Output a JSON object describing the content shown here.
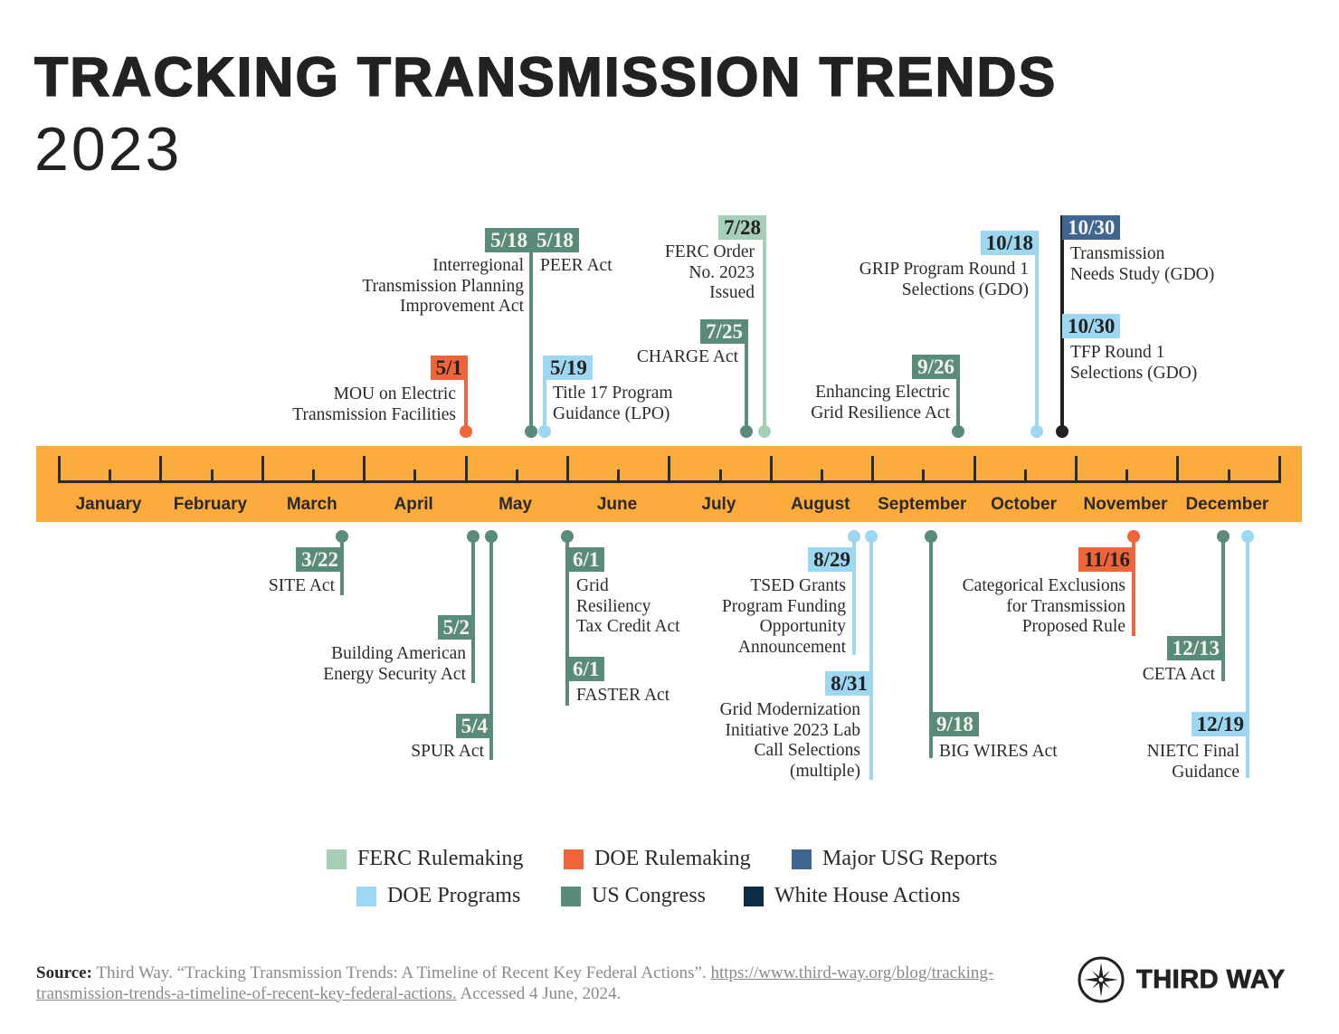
{
  "title": "TRACKING TRANSMISSION TRENDS",
  "year": "2023",
  "months": [
    "January",
    "February",
    "March",
    "April",
    "May",
    "June",
    "July",
    "August",
    "September",
    "October",
    "November",
    "December"
  ],
  "categories": {
    "ferc": {
      "label": "FERC Rulemaking",
      "color": "#a6cfb8"
    },
    "doe-rule": {
      "label": "DOE Rulemaking",
      "color": "#f0643a"
    },
    "usg": {
      "label": "Major USG Reports",
      "color": "#3e6690"
    },
    "doe-prog": {
      "label": "DOE Programs",
      "color": "#9dd7f2"
    },
    "congress": {
      "label": "US Congress",
      "color": "#5a8a78"
    },
    "whitehouse": {
      "label": "White House Actions",
      "color": "#0c2c44"
    }
  },
  "legend_order": [
    "ferc",
    "doe-rule",
    "usg",
    "doe-prog",
    "congress",
    "whitehouse"
  ],
  "timeline_color": "#fbab3b",
  "events": [
    {
      "date": "5/1",
      "category": "doe-rule",
      "text": [
        "MOU on Electric",
        "Transmission Facilities"
      ]
    },
    {
      "date": "5/18",
      "category": "congress",
      "text": [
        "Interregional",
        "Transmission Planning",
        "Improvement Act"
      ]
    },
    {
      "date": "5/18",
      "category": "congress",
      "text": [
        "PEER Act"
      ]
    },
    {
      "date": "5/19",
      "category": "doe-prog",
      "text": [
        "Title 17 Program",
        "Guidance (LPO)"
      ]
    },
    {
      "date": "7/25",
      "category": "congress",
      "text": [
        "CHARGE Act"
      ]
    },
    {
      "date": "7/28",
      "category": "ferc",
      "text": [
        "FERC Order",
        "No. 2023",
        "Issued"
      ]
    },
    {
      "date": "9/26",
      "category": "congress",
      "text": [
        "Enhancing Electric",
        "Grid Resilience Act"
      ]
    },
    {
      "date": "10/18",
      "category": "doe-prog",
      "text": [
        "GRIP Program Round 1",
        "Selections (GDO)"
      ]
    },
    {
      "date": "10/30",
      "category": "usg",
      "text": [
        "Transmission",
        "Needs Study (GDO)"
      ]
    },
    {
      "date": "10/30",
      "category": "doe-prog",
      "text": [
        "TFP Round 1",
        "Selections (GDO)"
      ]
    },
    {
      "date": "3/22",
      "category": "congress",
      "text": [
        "SITE Act"
      ]
    },
    {
      "date": "5/2",
      "category": "congress",
      "text": [
        "Building American",
        "Energy Security Act"
      ]
    },
    {
      "date": "5/4",
      "category": "congress",
      "text": [
        "SPUR Act"
      ]
    },
    {
      "date": "6/1",
      "category": "congress",
      "text": [
        "Grid",
        "Resiliency",
        "Tax Credit Act"
      ]
    },
    {
      "date": "6/1",
      "category": "congress",
      "text": [
        "FASTER Act"
      ]
    },
    {
      "date": "8/29",
      "category": "doe-prog",
      "text": [
        "TSED Grants",
        "Program Funding",
        "Opportunity",
        "Announcement"
      ]
    },
    {
      "date": "8/31",
      "category": "doe-prog",
      "text": [
        "Grid Modernization",
        "Initiative 2023 Lab",
        "Call Selections",
        "(multiple)"
      ]
    },
    {
      "date": "9/18",
      "category": "congress",
      "text": [
        "BIG WIRES Act"
      ]
    },
    {
      "date": "11/16",
      "category": "doe-rule",
      "text": [
        "Categorical Exclusions",
        "for Transmission",
        "Proposed Rule"
      ]
    },
    {
      "date": "12/13",
      "category": "congress",
      "text": [
        "CETA Act"
      ]
    },
    {
      "date": "12/19",
      "category": "doe-prog",
      "text": [
        "NIETC Final",
        "Guidance"
      ]
    }
  ],
  "source": {
    "label": "Source:",
    "text": "Third Way. “Tracking Transmission Trends: A Timeline of Recent Key Federal Actions”.",
    "link": "https://www.third-way.org/blog/tracking-transmission-trends-a-timeline-of-recent-key-federal-actions.",
    "accessed": "Accessed 4 June, 2024."
  },
  "logo": "THIRD WAY"
}
